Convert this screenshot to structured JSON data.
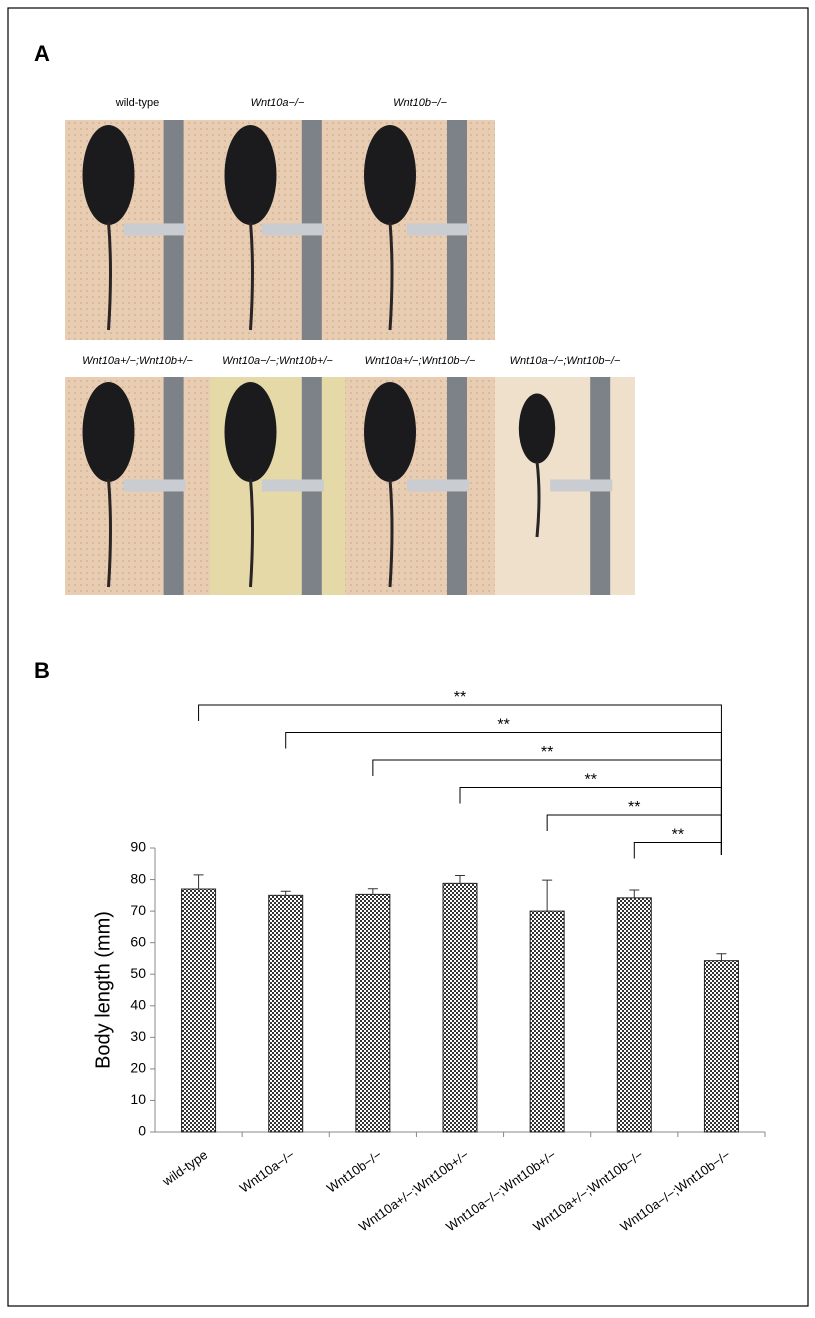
{
  "panel_a": {
    "label": "A",
    "photos": [
      "wild-type",
      "Wnt10a−/−",
      "Wnt10b−/−",
      "Wnt10a+/−;Wnt10b+/−",
      "Wnt10a−/−;Wnt10b+/−",
      "Wnt10a+/−;Wnt10b−/−",
      "Wnt10a−/−;Wnt10b−/−"
    ]
  },
  "panel_b": {
    "label": "B"
  },
  "chart_data": {
    "type": "bar",
    "y_label": "Body length (mm)",
    "categories": [
      "wild-type",
      "Wnt10a−/−",
      "Wnt10b−/−",
      "Wnt10a+/−;Wnt10b+/−",
      "Wnt10a−/−;Wnt10b+/−",
      "Wnt10a+/−;Wnt10b−/−",
      "Wnt10a−/−;Wnt10b−/−"
    ],
    "values": [
      77,
      75,
      75.3,
      78.8,
      70,
      74.2,
      54.3
    ],
    "errors": [
      4.5,
      1.3,
      1.8,
      2.5,
      9.8,
      2.5,
      2.2
    ],
    "color": "#333333",
    "ylim": [
      0,
      90
    ],
    "yticks": [
      0,
      10,
      20,
      30,
      40,
      50,
      60,
      70,
      80,
      90
    ],
    "significance": [
      {
        "from": 0,
        "to": 6,
        "label": "**"
      },
      {
        "from": 1,
        "to": 6,
        "label": "**"
      },
      {
        "from": 2,
        "to": 6,
        "label": "**"
      },
      {
        "from": 3,
        "to": 6,
        "label": "**"
      },
      {
        "from": 4,
        "to": 6,
        "label": "**"
      },
      {
        "from": 5,
        "to": 6,
        "label": "**"
      }
    ]
  }
}
